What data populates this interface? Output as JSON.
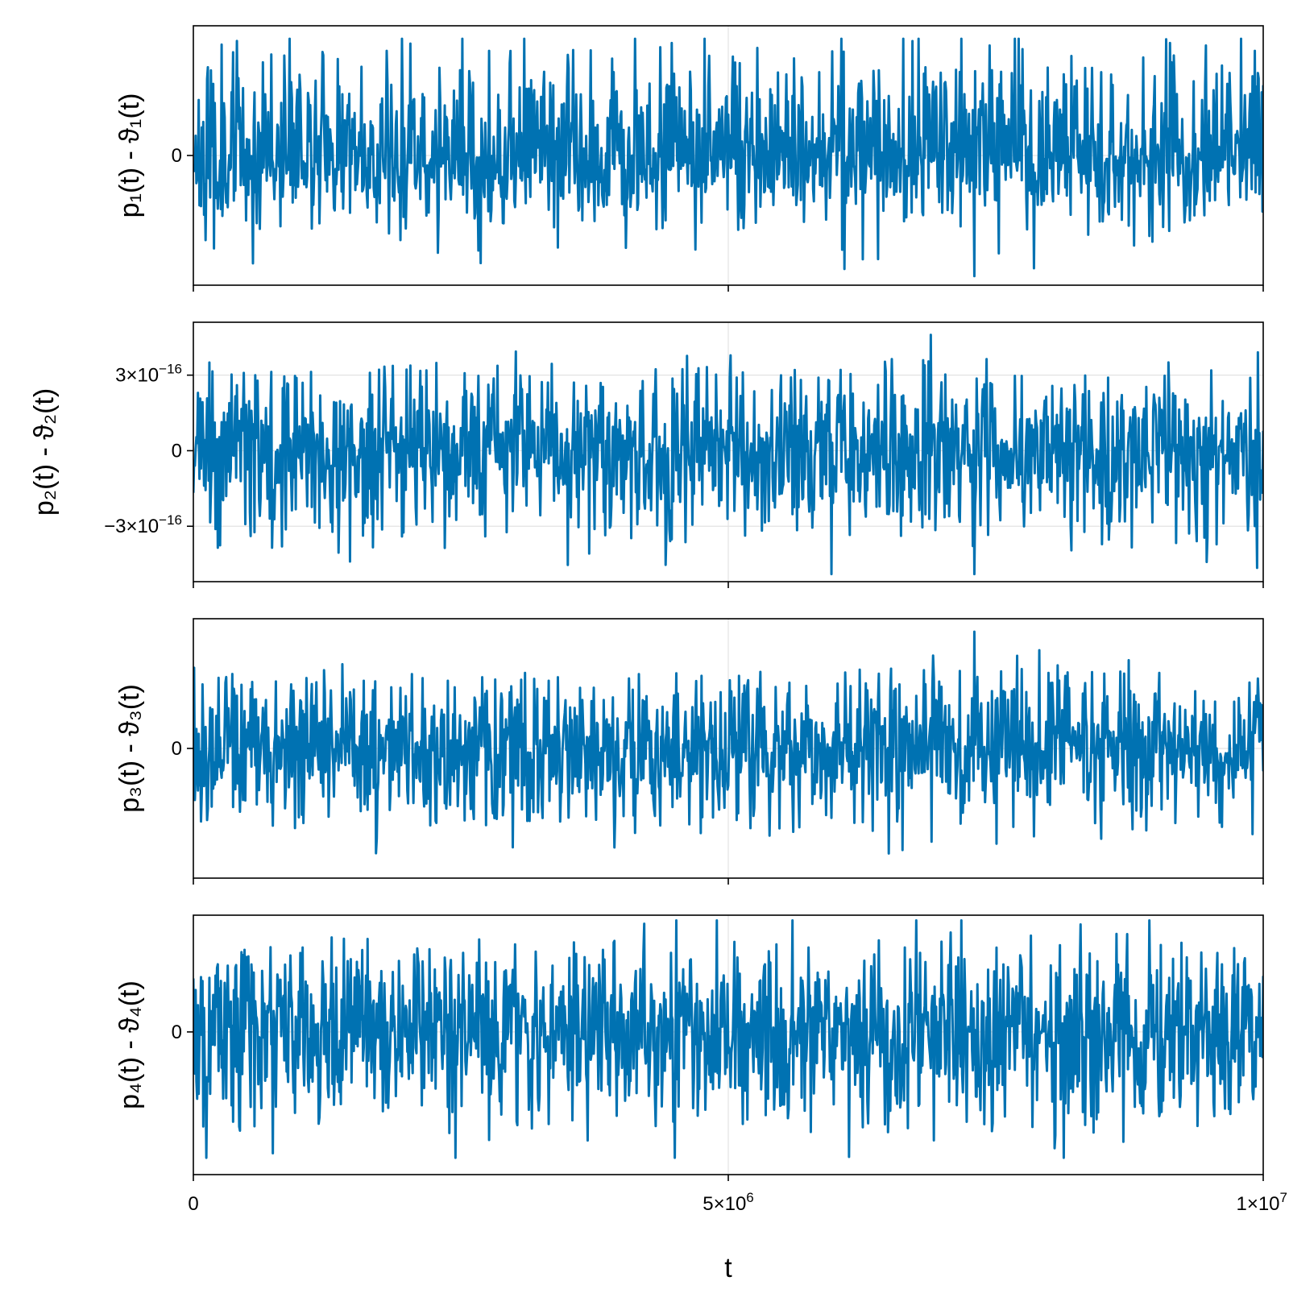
{
  "chart_data": {
    "type": "line",
    "xlabel": "t",
    "xlim": [
      0,
      10000000
    ],
    "x_ticks": [
      {
        "value": 0,
        "label": "0",
        "sup": ""
      },
      {
        "value": 5000000,
        "label": "5×10",
        "sup": "6"
      },
      {
        "value": 10000000,
        "label": "1×10",
        "sup": "7"
      }
    ],
    "line_color": "#0072b2",
    "grid": true,
    "panels": [
      {
        "ylabel": "p₁(t) - ϑ₁(t)",
        "yticks": [
          {
            "value": 0,
            "label": "0",
            "sup": ""
          }
        ],
        "ylim": [
          -1.0,
          1.0
        ],
        "envelope": {
          "lower": -0.58,
          "upper": 0.88,
          "min": -0.93,
          "max": 0.9
        },
        "seed": 11
      },
      {
        "ylabel": "p₂(t) - ϑ₂(t)",
        "yticks": [
          {
            "value": 3e-16,
            "label": "3×10",
            "sup": "−16"
          },
          {
            "value": 0,
            "label": "0",
            "sup": ""
          },
          {
            "value": -3e-16,
            "label": "−3×10",
            "sup": "−16"
          }
        ],
        "ylim": [
          -5.2e-16,
          5.1e-16
        ],
        "envelope": {
          "lower": -3.6e-16,
          "upper": 3.4e-16,
          "min": -4.9e-16,
          "max": 4.6e-16
        },
        "seed": 23
      },
      {
        "ylabel": "p₃(t) - ϑ₃(t)",
        "yticks": [
          {
            "value": 0,
            "label": "0",
            "sup": ""
          }
        ],
        "ylim": [
          -1.0,
          1.0
        ],
        "envelope": {
          "lower": -0.62,
          "upper": 0.6,
          "min": -0.81,
          "max": 0.9
        },
        "seed": 37
      },
      {
        "ylabel": "p₄(t) - ϑ₄(t)",
        "yticks": [
          {
            "value": 0,
            "label": "0",
            "sup": ""
          }
        ],
        "ylim": [
          -1.1,
          0.9
        ],
        "envelope": {
          "lower": -0.78,
          "upper": 0.72,
          "min": -0.97,
          "max": 0.86
        },
        "seed": 51
      }
    ]
  }
}
